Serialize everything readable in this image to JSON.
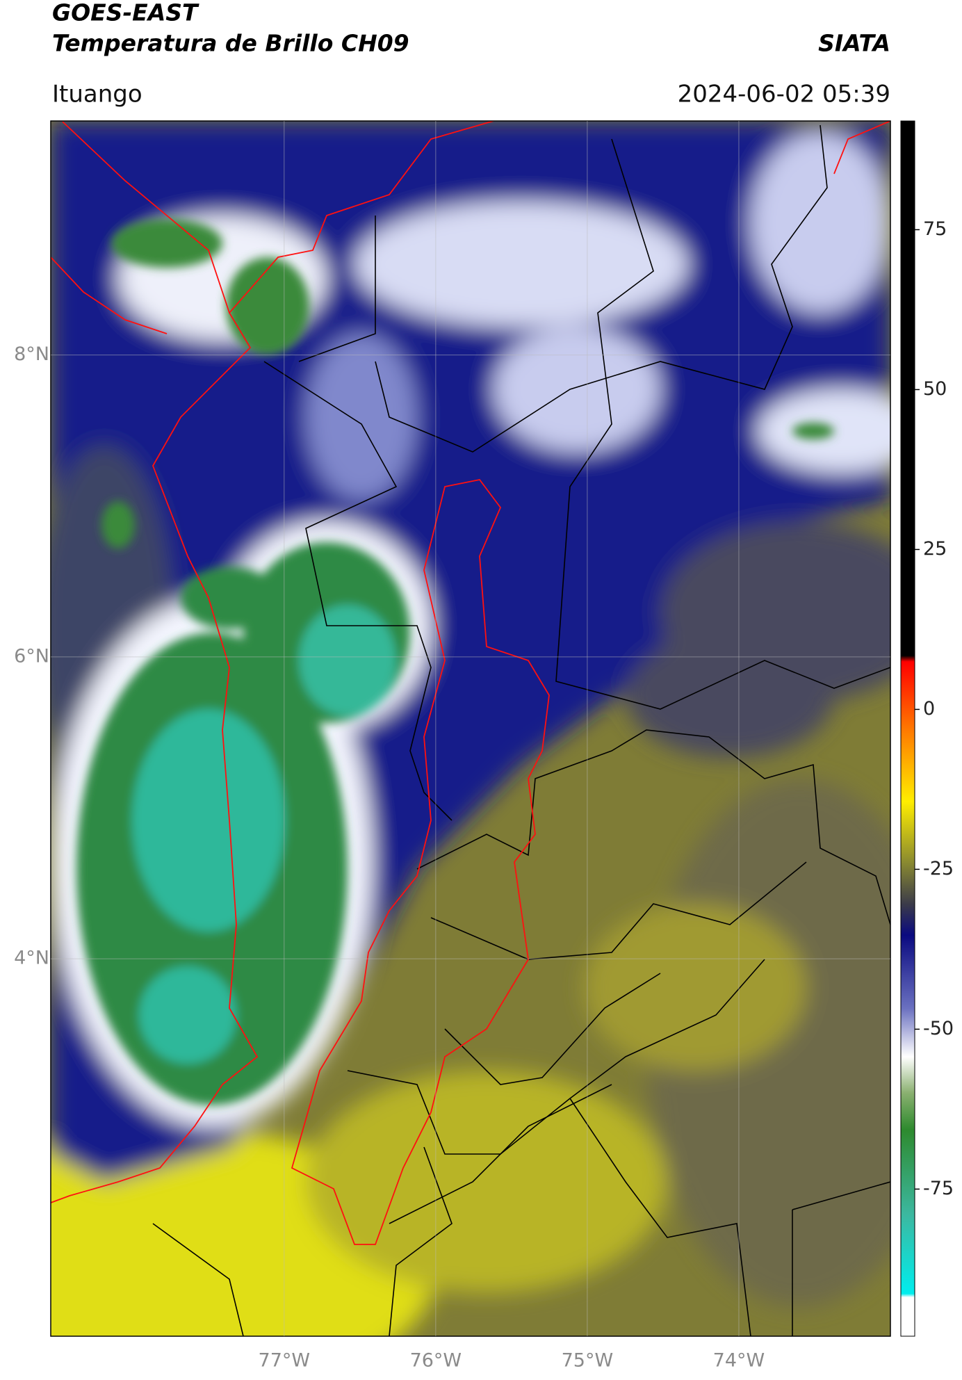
{
  "header": {
    "title": "GOES-EAST",
    "subtitle": "Temperatura de Brillo CH09",
    "source": "SIATA",
    "location": "Ituango",
    "timestamp": "2024-06-02 05:39"
  },
  "map": {
    "xlim": [
      -78.54,
      -73.0
    ],
    "ylim": [
      1.5,
      9.55
    ],
    "xticks": [
      {
        "value": -77,
        "label": "77°W"
      },
      {
        "value": -76,
        "label": "76°W"
      },
      {
        "value": -75,
        "label": "75°W"
      },
      {
        "value": -74,
        "label": "74°W"
      }
    ],
    "yticks": [
      {
        "value": 4,
        "label": "4°N"
      },
      {
        "value": 6,
        "label": "6°N"
      },
      {
        "value": 8,
        "label": "8°N"
      }
    ],
    "grid": true
  },
  "colorbar": {
    "lim": [
      -98,
      92
    ],
    "ticks": [
      -75,
      -50,
      -25,
      0,
      25,
      50,
      75
    ]
  }
}
